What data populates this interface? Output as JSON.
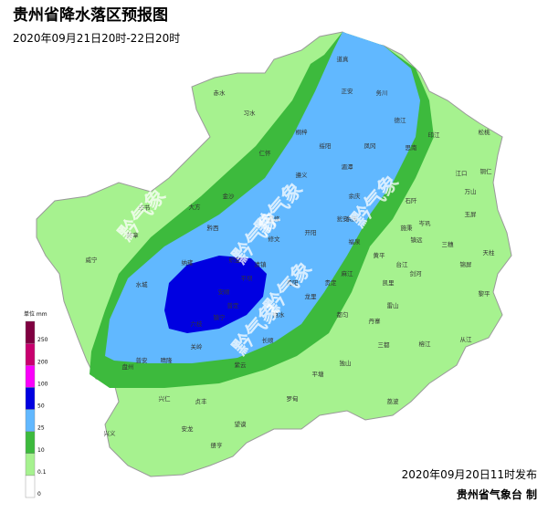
{
  "header": {
    "title": "贵州省降水落区预报图",
    "subtitle": "2020年09月21日20时-22日20时"
  },
  "legend": {
    "unit": "单位 mm",
    "levels": [
      0,
      0.1,
      10,
      25,
      50,
      100,
      200,
      250
    ],
    "colors": [
      "#ffffff",
      "#a6f28f",
      "#3dba3d",
      "#61b8ff",
      "#0000e1",
      "#fa00fa",
      "#c8006e",
      "#7f0040"
    ]
  },
  "cities": [
    "遵义",
    "正安",
    "务川",
    "道真",
    "习水",
    "桐梓",
    "绥阳",
    "凤冈",
    "湄潭",
    "德江",
    "思南",
    "印江",
    "江口",
    "铜仁",
    "松桃",
    "余庆",
    "石阡",
    "岑巩",
    "玉屏",
    "镇远",
    "三穗",
    "天柱",
    "锦屏",
    "黎平",
    "从江",
    "榕江",
    "雷山",
    "丹寨",
    "凯里",
    "黄平",
    "施秉",
    "剑河",
    "台江",
    "福泉",
    "贵定",
    "龙里",
    "都匀",
    "三都",
    "荔波",
    "独山",
    "平塘",
    "罗甸",
    "惠水",
    "长顺",
    "紫云",
    "望谟",
    "册亨",
    "安龙",
    "兴仁",
    "兴义",
    "普安",
    "贞丰",
    "关岭",
    "镇宁",
    "安顺",
    "平坝",
    "清镇",
    "贵阳",
    "开阳",
    "息烽",
    "修文",
    "金沙",
    "黔西",
    "大方",
    "毕节",
    "纳雍",
    "织金",
    "水城",
    "六枝",
    "普定",
    "盘州",
    "威宁",
    "赫章",
    "仁怀",
    "赤水",
    "瓮安",
    "麻江",
    "余庆",
    "万山",
    "晴隆"
  ],
  "watermarks": [
    "黔气象",
    "黔气象",
    "黔气象",
    "黔气象",
    "黔气象",
    "黔气象"
  ],
  "footer": {
    "issued": "2020年09月20日11时发布",
    "agency": "贵州省气象台  制"
  }
}
